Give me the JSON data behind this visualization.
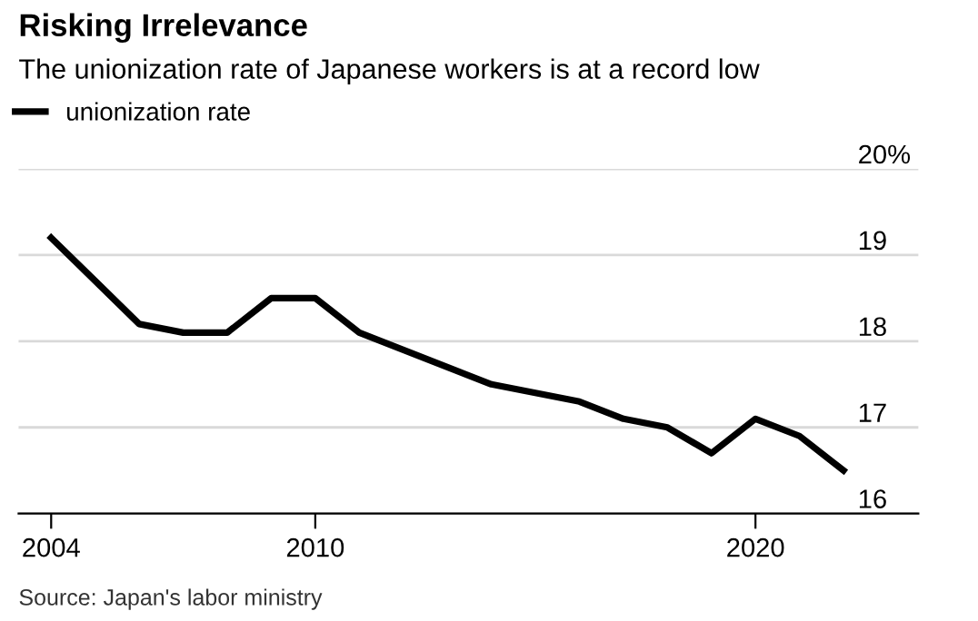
{
  "chart_data": {
    "type": "line",
    "title": "Risking Irrelevance",
    "subtitle": "The unionization rate of Japanese workers is at a record low",
    "x": [
      2004,
      2005,
      2006,
      2007,
      2008,
      2009,
      2010,
      2011,
      2012,
      2013,
      2014,
      2015,
      2016,
      2017,
      2018,
      2019,
      2020,
      2021,
      2022
    ],
    "series": [
      {
        "name": "unionization rate",
        "color": "#000000",
        "values": [
          19.2,
          18.7,
          18.2,
          18.1,
          18.1,
          18.5,
          18.5,
          18.1,
          17.9,
          17.7,
          17.5,
          17.4,
          17.3,
          17.1,
          17.0,
          16.7,
          17.1,
          16.9,
          16.5
        ]
      }
    ],
    "xlim": [
      2003.26,
      2023.7
    ],
    "xticks": [
      2004,
      2010,
      2020
    ],
    "ylim": [
      16,
      20
    ],
    "yticks": [
      16,
      17,
      18,
      19,
      {
        "value": 20,
        "label": "20%"
      }
    ],
    "grid": "y",
    "legend": "top left",
    "marker": "none",
    "line_style": "solid",
    "annotations": [
      "Source: Japan's labor ministry"
    ]
  }
}
